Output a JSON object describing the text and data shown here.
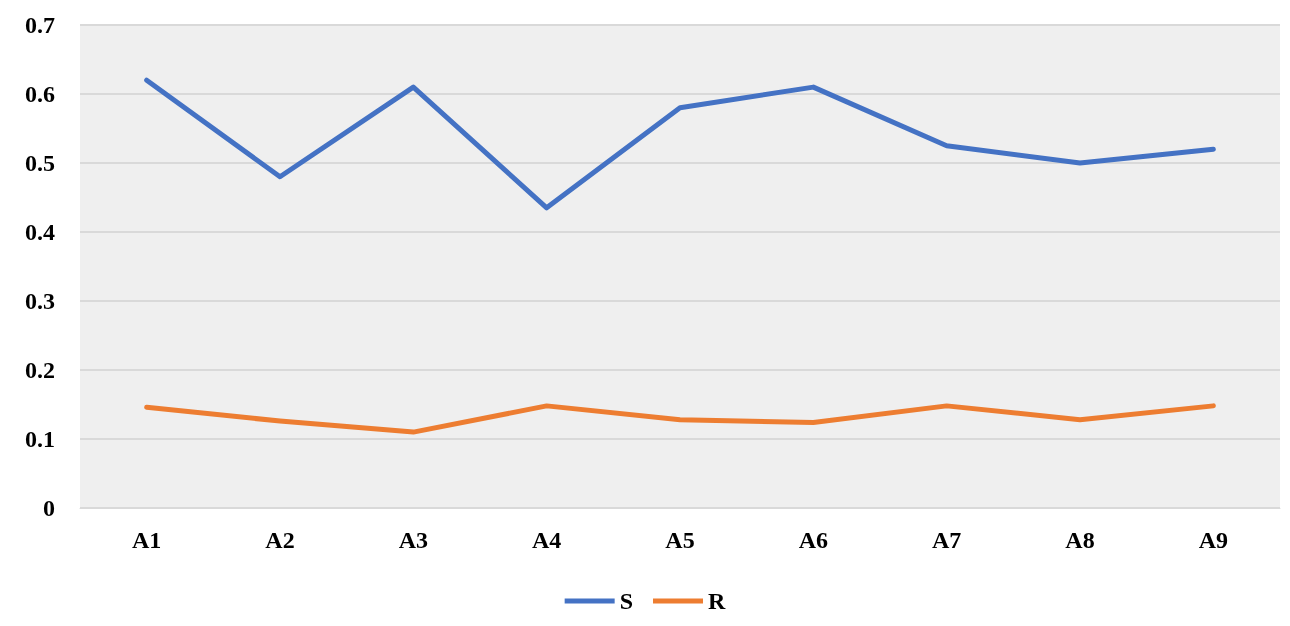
{
  "chart_data": {
    "type": "line",
    "categories": [
      "A1",
      "A2",
      "A3",
      "A4",
      "A5",
      "A6",
      "A7",
      "A8",
      "A9"
    ],
    "series": [
      {
        "name": "S",
        "color": "#4472c4",
        "values": [
          0.62,
          0.48,
          0.61,
          0.435,
          0.58,
          0.61,
          0.525,
          0.5,
          0.52
        ]
      },
      {
        "name": "R",
        "color": "#ed7d31",
        "values": [
          0.146,
          0.126,
          0.11,
          0.148,
          0.128,
          0.124,
          0.148,
          0.128,
          0.148
        ]
      }
    ],
    "ylim": [
      0,
      0.7
    ],
    "yticks": [
      0,
      0.1,
      0.2,
      0.3,
      0.4,
      0.5,
      0.6,
      0.7
    ],
    "grid": "y",
    "legend": "bottom",
    "marker": "none",
    "line_style": "solid"
  }
}
